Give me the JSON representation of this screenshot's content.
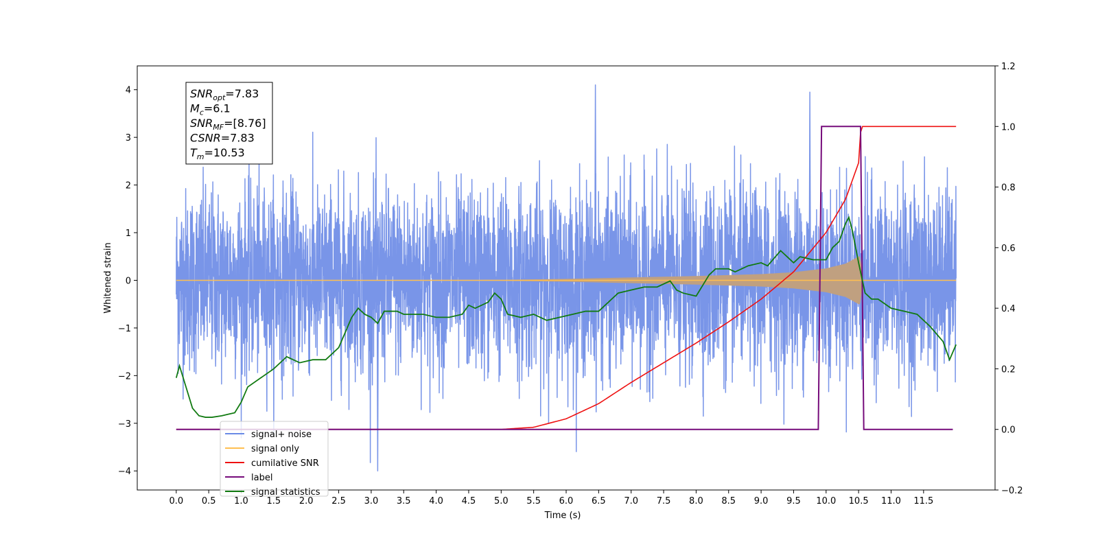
{
  "chart_data": {
    "type": "line",
    "title": "",
    "xlabel": "Time (s)",
    "ylabel": "Whitened strain",
    "xlim": [
      -0.6,
      12.6
    ],
    "ylim": [
      -4.4,
      4.5
    ],
    "y2lim": [
      -0.2,
      1.2
    ],
    "x_ticks": [
      "0.0",
      "0.5",
      "1.0",
      "1.5",
      "2.0",
      "2.5",
      "3.0",
      "3.5",
      "4.0",
      "4.5",
      "5.0",
      "5.5",
      "6.0",
      "6.5",
      "7.0",
      "7.5",
      "8.0",
      "8.5",
      "9.0",
      "9.5",
      "10.0",
      "10.5",
      "11.0",
      "11.5"
    ],
    "y_ticks": [
      "−4",
      "−3",
      "−2",
      "−1",
      "0",
      "1",
      "2",
      "3",
      "4"
    ],
    "y2_ticks": [
      "−0.2",
      "0.0",
      "0.2",
      "0.4",
      "0.6",
      "0.8",
      "1.0",
      "1.2"
    ],
    "grid": false,
    "legend_placement": "lower-left",
    "annotation": {
      "lines": [
        {
          "base": "SNR",
          "sub": "opt",
          "text": "=7.83"
        },
        {
          "base": "M",
          "sub": "c",
          "text": "=6.1"
        },
        {
          "base": "SNR",
          "sub": "MF",
          "text": "=[8.76]"
        },
        {
          "base": "CSNR",
          "sub": "",
          "text": "=7.83"
        },
        {
          "base": "T",
          "sub": "m",
          "text": "=10.53"
        }
      ]
    },
    "series": [
      {
        "name": "signal+ noise",
        "axis": "left",
        "color": "#6a8ae6",
        "noise_sigma": 0.95,
        "x_range": [
          0.0,
          12.0
        ],
        "notable_peaks": [
          {
            "x": 6.45,
            "y": 4.1
          },
          {
            "x": 9.75,
            "y": 3.95
          },
          {
            "x": 3.1,
            "y": -4.0
          }
        ]
      },
      {
        "name": "signal only",
        "axis": "left",
        "color": "#ffbf50",
        "envelope": [
          [
            0.0,
            0.0
          ],
          [
            5.0,
            0.01
          ],
          [
            6.0,
            0.03
          ],
          [
            7.0,
            0.06
          ],
          [
            8.0,
            0.09
          ],
          [
            9.0,
            0.13
          ],
          [
            9.5,
            0.17
          ],
          [
            10.0,
            0.25
          ],
          [
            10.3,
            0.35
          ],
          [
            10.5,
            0.5
          ],
          [
            10.53,
            0.5
          ],
          [
            10.56,
            0.0
          ],
          [
            12.0,
            0.0
          ]
        ]
      },
      {
        "name": "cumilative SNR",
        "axis": "right",
        "color": "#ee1010",
        "x": [
          0.0,
          5.0,
          5.5,
          6.0,
          6.5,
          7.0,
          7.5,
          8.0,
          8.5,
          9.0,
          9.5,
          10.0,
          10.3,
          10.5,
          10.53,
          10.55,
          12.0
        ],
        "values": [
          0.0,
          0.0,
          0.007,
          0.035,
          0.085,
          0.155,
          0.22,
          0.285,
          0.355,
          0.43,
          0.52,
          0.65,
          0.76,
          0.88,
          0.98,
          1.0,
          1.0
        ]
      },
      {
        "name": "label",
        "axis": "right",
        "color": "#750a7a",
        "x": [
          0.0,
          9.88,
          9.93,
          10.5,
          10.53,
          10.58,
          11.95
        ],
        "values": [
          0.0,
          0.0,
          1.0,
          1.0,
          1.0,
          0.0,
          0.0
        ]
      },
      {
        "name": "signal statistics",
        "axis": "right",
        "color": "#117a11",
        "x": [
          0.0,
          0.05,
          0.15,
          0.25,
          0.35,
          0.45,
          0.55,
          0.7,
          0.8,
          0.9,
          1.0,
          1.1,
          1.3,
          1.5,
          1.7,
          1.9,
          2.1,
          2.3,
          2.5,
          2.6,
          2.7,
          2.8,
          2.9,
          3.0,
          3.1,
          3.2,
          3.4,
          3.5,
          3.6,
          3.8,
          4.0,
          4.2,
          4.4,
          4.5,
          4.6,
          4.8,
          4.9,
          5.0,
          5.1,
          5.3,
          5.5,
          5.7,
          5.9,
          6.1,
          6.3,
          6.5,
          6.7,
          6.8,
          7.0,
          7.2,
          7.4,
          7.6,
          7.7,
          7.8,
          8.0,
          8.2,
          8.3,
          8.5,
          8.6,
          8.8,
          9.0,
          9.1,
          9.3,
          9.5,
          9.6,
          9.8,
          10.0,
          10.1,
          10.2,
          10.3,
          10.35,
          10.4,
          10.5,
          10.6,
          10.7,
          10.8,
          11.0,
          11.2,
          11.4,
          11.6,
          11.8,
          11.9,
          12.0
        ],
        "values": [
          0.17,
          0.21,
          0.14,
          0.07,
          0.045,
          0.04,
          0.04,
          0.045,
          0.05,
          0.055,
          0.09,
          0.14,
          0.17,
          0.2,
          0.24,
          0.22,
          0.23,
          0.23,
          0.27,
          0.32,
          0.37,
          0.4,
          0.38,
          0.37,
          0.35,
          0.39,
          0.39,
          0.38,
          0.38,
          0.38,
          0.37,
          0.37,
          0.38,
          0.41,
          0.4,
          0.42,
          0.45,
          0.43,
          0.38,
          0.37,
          0.38,
          0.36,
          0.37,
          0.38,
          0.39,
          0.39,
          0.43,
          0.45,
          0.46,
          0.47,
          0.47,
          0.49,
          0.46,
          0.45,
          0.44,
          0.51,
          0.53,
          0.53,
          0.52,
          0.54,
          0.55,
          0.54,
          0.59,
          0.55,
          0.57,
          0.56,
          0.56,
          0.6,
          0.62,
          0.68,
          0.7,
          0.66,
          0.55,
          0.45,
          0.43,
          0.43,
          0.4,
          0.39,
          0.38,
          0.34,
          0.29,
          0.23,
          0.28
        ]
      }
    ]
  }
}
